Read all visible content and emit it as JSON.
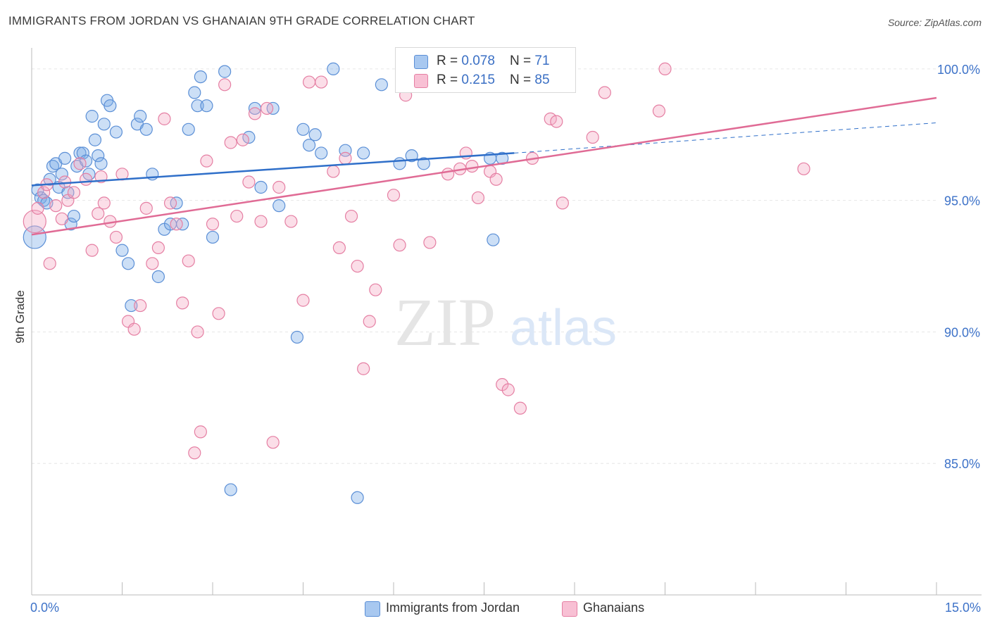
{
  "title": "IMMIGRANTS FROM JORDAN VS GHANAIAN 9TH GRADE CORRELATION CHART",
  "source": "Source: ZipAtlas.com",
  "watermark": {
    "zip": "ZIP",
    "atlas": "atlas"
  },
  "legend_top": [
    {
      "r_label": "R = ",
      "r_value": "0.078",
      "n_label": "N = ",
      "n_value": "71",
      "color": "#a8c8f0",
      "border": "#5b8fd6"
    },
    {
      "r_label": "R = ",
      "r_value": "0.215",
      "n_label": "N = ",
      "n_value": "85",
      "color": "#f8c0d4",
      "border": "#e57fa3"
    }
  ],
  "legend_bottom": [
    {
      "label": "Immigrants from Jordan",
      "color": "#a8c8f0",
      "border": "#5b8fd6"
    },
    {
      "label": "Ghanaians",
      "color": "#f8c0d4",
      "border": "#e57fa3"
    }
  ],
  "chart_data": {
    "type": "scatter",
    "xlabel": "",
    "ylabel": "9th Grade",
    "xlim": [
      0,
      15
    ],
    "ylim": [
      80,
      100.8
    ],
    "x_tick_labels": [
      "0.0%",
      "15.0%"
    ],
    "y_ticks": [
      85,
      90,
      95,
      100
    ],
    "y_tick_labels": [
      "85.0%",
      "90.0%",
      "95.0%",
      "100.0%"
    ],
    "grid": true,
    "legend": "top-center and bottom",
    "series": [
      {
        "name": "Immigrants from Jordan",
        "color": "#7aaae8",
        "stroke": "#5b8fd6",
        "line_color": "#2f6fc9",
        "trend": {
          "x0": 0,
          "y0": 95.57,
          "x1": 8.0,
          "y1": 96.8,
          "dash_to_x": 15.0,
          "dash_to_y": 97.95
        },
        "points": [
          [
            0.1,
            95.4
          ],
          [
            0.15,
            95.1
          ],
          [
            0.2,
            95.0
          ],
          [
            0.25,
            94.9
          ],
          [
            0.35,
            96.3
          ],
          [
            0.4,
            96.4
          ],
          [
            0.45,
            95.5
          ],
          [
            0.5,
            96.0
          ],
          [
            0.55,
            96.6
          ],
          [
            0.6,
            95.3
          ],
          [
            0.65,
            94.1
          ],
          [
            0.7,
            94.4
          ],
          [
            0.75,
            96.3
          ],
          [
            0.8,
            96.8
          ],
          [
            0.85,
            96.8
          ],
          [
            0.9,
            96.5
          ],
          [
            0.95,
            96.0
          ],
          [
            1.0,
            98.2
          ],
          [
            1.05,
            97.3
          ],
          [
            1.1,
            96.7
          ],
          [
            1.15,
            96.4
          ],
          [
            1.2,
            97.9
          ],
          [
            1.25,
            98.8
          ],
          [
            1.3,
            98.6
          ],
          [
            1.4,
            97.6
          ],
          [
            1.5,
            93.1
          ],
          [
            1.6,
            92.6
          ],
          [
            1.65,
            91.0
          ],
          [
            1.75,
            97.9
          ],
          [
            1.8,
            98.2
          ],
          [
            1.9,
            97.7
          ],
          [
            2.0,
            96.0
          ],
          [
            2.1,
            92.1
          ],
          [
            2.2,
            93.9
          ],
          [
            2.3,
            94.1
          ],
          [
            2.4,
            94.9
          ],
          [
            2.5,
            94.1
          ],
          [
            2.6,
            97.7
          ],
          [
            2.7,
            99.1
          ],
          [
            2.75,
            98.6
          ],
          [
            2.8,
            99.7
          ],
          [
            2.9,
            98.6
          ],
          [
            3.0,
            93.6
          ],
          [
            3.2,
            99.9
          ],
          [
            3.3,
            84.0
          ],
          [
            3.6,
            97.4
          ],
          [
            3.7,
            98.5
          ],
          [
            3.8,
            95.5
          ],
          [
            4.0,
            98.5
          ],
          [
            4.1,
            94.8
          ],
          [
            4.4,
            89.8
          ],
          [
            4.5,
            97.7
          ],
          [
            4.6,
            97.1
          ],
          [
            4.7,
            97.5
          ],
          [
            4.8,
            96.8
          ],
          [
            5.0,
            100.0
          ],
          [
            5.2,
            96.9
          ],
          [
            5.4,
            83.7
          ],
          [
            5.5,
            96.8
          ],
          [
            5.8,
            99.4
          ],
          [
            6.1,
            96.4
          ],
          [
            6.3,
            96.7
          ],
          [
            6.4,
            100.0
          ],
          [
            6.5,
            96.4
          ],
          [
            7.0,
            100.0
          ],
          [
            7.6,
            96.6
          ],
          [
            7.2,
            100.0
          ],
          [
            7.8,
            96.6
          ],
          [
            7.65,
            93.5
          ],
          [
            0.05,
            93.6
          ],
          [
            0.3,
            95.8
          ]
        ]
      },
      {
        "name": "Ghanaians",
        "color": "#f4a8c2",
        "stroke": "#e57fa3",
        "line_color": "#e06b95",
        "trend": {
          "x0": 0,
          "y0": 93.7,
          "x1": 15.0,
          "y1": 98.9
        },
        "points": [
          [
            0.05,
            94.2
          ],
          [
            0.1,
            94.7
          ],
          [
            0.2,
            95.3
          ],
          [
            0.25,
            95.6
          ],
          [
            0.3,
            92.6
          ],
          [
            0.4,
            94.8
          ],
          [
            0.5,
            94.3
          ],
          [
            0.55,
            95.7
          ],
          [
            0.6,
            95.0
          ],
          [
            0.7,
            95.3
          ],
          [
            0.8,
            96.4
          ],
          [
            0.9,
            95.8
          ],
          [
            1.0,
            93.1
          ],
          [
            1.1,
            94.5
          ],
          [
            1.15,
            95.9
          ],
          [
            1.2,
            94.9
          ],
          [
            1.3,
            94.2
          ],
          [
            1.4,
            93.6
          ],
          [
            1.5,
            96.0
          ],
          [
            1.6,
            90.4
          ],
          [
            1.7,
            90.1
          ],
          [
            1.8,
            91.0
          ],
          [
            1.9,
            94.7
          ],
          [
            2.0,
            92.6
          ],
          [
            2.1,
            93.2
          ],
          [
            2.2,
            98.1
          ],
          [
            2.3,
            94.9
          ],
          [
            2.4,
            94.1
          ],
          [
            2.5,
            91.1
          ],
          [
            2.6,
            92.7
          ],
          [
            2.7,
            85.4
          ],
          [
            2.75,
            90.0
          ],
          [
            2.8,
            86.2
          ],
          [
            2.9,
            96.5
          ],
          [
            3.0,
            94.1
          ],
          [
            3.1,
            90.7
          ],
          [
            3.2,
            99.4
          ],
          [
            3.3,
            97.2
          ],
          [
            3.4,
            94.4
          ],
          [
            3.5,
            97.3
          ],
          [
            3.6,
            95.7
          ],
          [
            3.7,
            98.3
          ],
          [
            3.8,
            94.2
          ],
          [
            3.9,
            98.5
          ],
          [
            4.0,
            85.8
          ],
          [
            4.1,
            95.5
          ],
          [
            4.3,
            94.2
          ],
          [
            4.5,
            91.2
          ],
          [
            4.6,
            99.5
          ],
          [
            4.8,
            99.5
          ],
          [
            5.0,
            96.1
          ],
          [
            5.1,
            93.2
          ],
          [
            5.2,
            96.6
          ],
          [
            5.3,
            94.4
          ],
          [
            5.4,
            92.5
          ],
          [
            5.5,
            88.6
          ],
          [
            5.6,
            90.4
          ],
          [
            5.7,
            91.6
          ],
          [
            6.0,
            95.2
          ],
          [
            6.1,
            93.3
          ],
          [
            6.2,
            99.0
          ],
          [
            6.4,
            99.9
          ],
          [
            6.6,
            93.4
          ],
          [
            6.7,
            100.0
          ],
          [
            6.9,
            96.0
          ],
          [
            7.1,
            96.2
          ],
          [
            7.2,
            96.8
          ],
          [
            7.3,
            96.3
          ],
          [
            7.4,
            95.1
          ],
          [
            7.5,
            100.0
          ],
          [
            7.6,
            96.1
          ],
          [
            7.7,
            95.8
          ],
          [
            7.8,
            88.0
          ],
          [
            7.9,
            87.8
          ],
          [
            8.0,
            99.7
          ],
          [
            8.1,
            87.1
          ],
          [
            8.3,
            96.6
          ],
          [
            8.6,
            98.1
          ],
          [
            8.7,
            98.0
          ],
          [
            8.8,
            94.9
          ],
          [
            9.3,
            97.4
          ],
          [
            9.5,
            99.1
          ],
          [
            10.4,
            98.4
          ],
          [
            10.5,
            100.0
          ],
          [
            12.8,
            96.2
          ]
        ]
      }
    ]
  }
}
